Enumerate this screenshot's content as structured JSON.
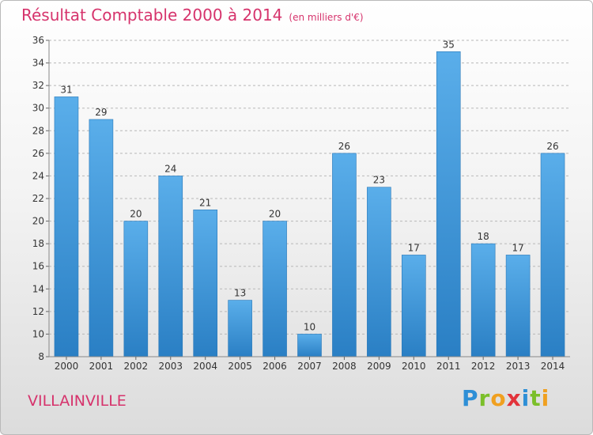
{
  "header": {
    "title": "Résultat Comptable 2000 à 2014",
    "unit": "(en milliers d'€)"
  },
  "footer": {
    "city": "VILLAINVILLE"
  },
  "logo": {
    "letters": [
      "P",
      "r",
      "o",
      "x",
      "i",
      "t",
      "i"
    ],
    "colors": [
      "#2e8fd6",
      "#7bbf2a",
      "#f0a020",
      "#e2333b",
      "#2e8fd6",
      "#7bbf2a",
      "#f0a020"
    ]
  },
  "colors": {
    "title": "#d6336c",
    "bar_top": "#5aaeea",
    "bar_bottom": "#2a7fc4",
    "grid": "#b8b8b8"
  },
  "chart_data": {
    "type": "bar",
    "title": "Résultat Comptable 2000 à 2014",
    "subtitle": "(en milliers d'€)",
    "categories": [
      "2000",
      "2001",
      "2002",
      "2003",
      "2004",
      "2005",
      "2006",
      "2007",
      "2008",
      "2009",
      "2010",
      "2011",
      "2012",
      "2013",
      "2014"
    ],
    "values": [
      31,
      29,
      20,
      24,
      21,
      13,
      20,
      10,
      26,
      23,
      17,
      35,
      18,
      17,
      26
    ],
    "ylim": [
      8,
      36
    ],
    "yticks": [
      "8",
      "10",
      "12",
      "14",
      "16",
      "18",
      "20",
      "22",
      "24",
      "26",
      "28",
      "30",
      "32",
      "34",
      "36"
    ],
    "grid": "horizontal-dashed",
    "data_labels": true
  }
}
